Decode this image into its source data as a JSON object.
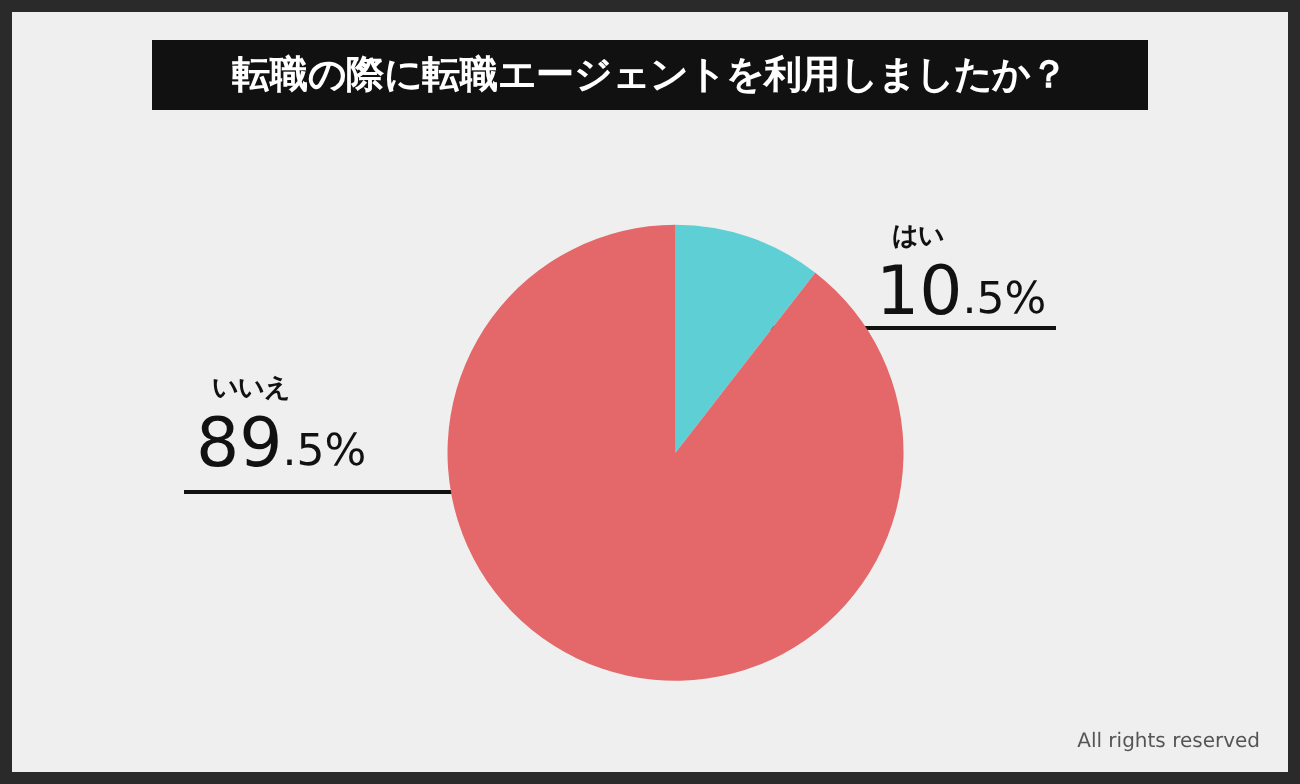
{
  "chart_data": {
    "type": "pie",
    "title": "転職の際に転職エージェントを利用しましたか？",
    "categories": [
      "はい",
      "いいえ"
    ],
    "values": [
      10.5,
      89.5
    ],
    "colors": [
      "#5fcfd6",
      "#e4676a"
    ],
    "value_labels": [
      "10.5%",
      "89.5%"
    ],
    "annotations": [
      "All rights reserved"
    ]
  }
}
